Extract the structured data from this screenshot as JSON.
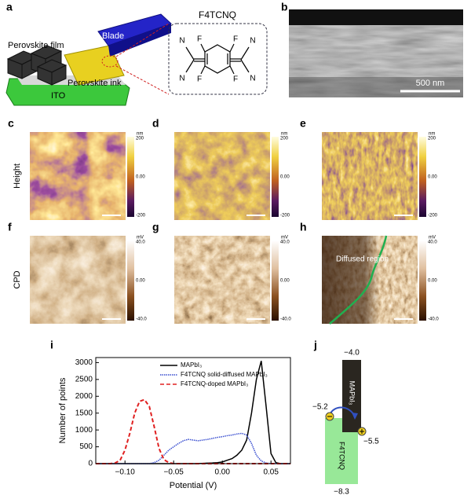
{
  "panels": {
    "a": {
      "label": "a",
      "blade": "Blade",
      "film": "Perovskite film",
      "ink": "Perovskite ink",
      "substrate": "ITO",
      "molecule": "F4TCNQ",
      "atoms": [
        "N",
        "N",
        "F",
        "F",
        "F",
        "F",
        "N",
        "N"
      ]
    },
    "b": {
      "label": "b",
      "scale_bar": "500 nm"
    },
    "c": {
      "label": "c",
      "row_label": "Height",
      "unit": "nm",
      "colorbar_ticks": [
        "200",
        "0.00",
        "-200"
      ]
    },
    "d": {
      "label": "d",
      "unit": "nm",
      "colorbar_ticks": [
        "200",
        "0.00",
        "-200"
      ]
    },
    "e": {
      "label": "e",
      "unit": "nm",
      "colorbar_ticks": [
        "200",
        "0.00",
        "-200"
      ]
    },
    "f": {
      "label": "f",
      "row_label": "CPD",
      "unit": "mV",
      "colorbar_ticks": [
        "40.0",
        "0.00",
        "-40.0"
      ]
    },
    "g": {
      "label": "g",
      "unit": "mV",
      "colorbar_ticks": [
        "40.0",
        "0.00",
        "-40.0"
      ]
    },
    "h": {
      "label": "h",
      "annotation": "Diffused region",
      "unit": "mV",
      "colorbar_ticks": [
        "40.0",
        "0.00",
        "-40.0"
      ]
    },
    "i": {
      "label": "i"
    },
    "j": {
      "label": "j",
      "top_material": "MAPbI₃",
      "bottom_material": "F4TCNQ",
      "levels": [
        "−4.0",
        "−5.2",
        "−5.5",
        "−8.3"
      ]
    }
  },
  "chart_data": {
    "type": "line",
    "x_label": "Potential (V)",
    "y_label": "Number of points",
    "x": [
      -0.13,
      -0.125,
      -0.12,
      -0.115,
      -0.11,
      -0.105,
      -0.1,
      -0.095,
      -0.09,
      -0.085,
      -0.08,
      -0.075,
      -0.07,
      -0.065,
      -0.06,
      -0.055,
      -0.05,
      -0.045,
      -0.04,
      -0.035,
      -0.03,
      -0.025,
      -0.02,
      -0.015,
      -0.01,
      -0.005,
      0,
      0.005,
      0.01,
      0.015,
      0.02,
      0.025,
      0.03,
      0.035,
      0.04,
      0.045,
      0.05,
      0.055,
      0.06,
      0.065,
      0.07
    ],
    "series": [
      {
        "name": "MAPbI₃",
        "color": "#000000",
        "line_style": "solid",
        "values": [
          0,
          0,
          0,
          0,
          0,
          0,
          0,
          0,
          0,
          0,
          0,
          0,
          0,
          0,
          0,
          0,
          0,
          0,
          0,
          0,
          0,
          0,
          10,
          15,
          20,
          30,
          50,
          100,
          150,
          250,
          400,
          700,
          1500,
          2500,
          3050,
          1700,
          300,
          30,
          0,
          0,
          0
        ]
      },
      {
        "name": "F4TCNQ solid-diffused MAPbI₃",
        "color": "#3a4fd0",
        "line_style": "dotted",
        "values": [
          0,
          0,
          0,
          0,
          0,
          0,
          0,
          0,
          0,
          0,
          0,
          0,
          30,
          100,
          250,
          400,
          500,
          600,
          680,
          720,
          700,
          680,
          700,
          720,
          750,
          780,
          800,
          830,
          850,
          880,
          900,
          850,
          600,
          250,
          80,
          20,
          0,
          0,
          0,
          0,
          0
        ]
      },
      {
        "name": "F4TCNQ-doped MAPbI₃",
        "color": "#e02020",
        "line_style": "dashed",
        "values": [
          0,
          0,
          0,
          0,
          20,
          100,
          400,
          900,
          1500,
          1850,
          1900,
          1700,
          1100,
          450,
          120,
          30,
          0,
          0,
          0,
          0,
          0,
          0,
          0,
          0,
          0,
          0,
          0,
          0,
          0,
          0,
          0,
          0,
          0,
          0,
          0,
          0,
          0,
          0,
          0,
          0,
          0
        ]
      }
    ],
    "xlim": [
      -0.13,
      0.07
    ],
    "xticks": [
      {
        "value": -0.1,
        "label": "−0.10"
      },
      {
        "value": -0.05,
        "label": "−0.05"
      },
      {
        "value": 0,
        "label": "0.00"
      },
      0.05
    ],
    "ylim": [
      0,
      3150
    ],
    "yticks": [
      0,
      500,
      1000,
      1500,
      2000,
      2500,
      3000
    ],
    "legend": "upper-left"
  }
}
